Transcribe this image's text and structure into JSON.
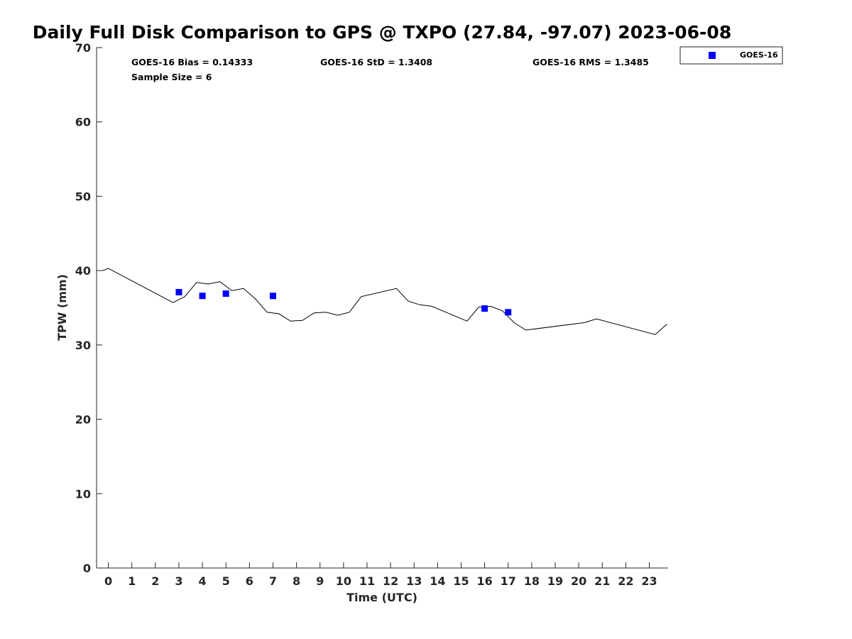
{
  "chart_data": {
    "type": "scatter",
    "title": "Daily Full Disk Comparison to GPS @ TXPO (27.84, -97.07) 2023-06-08",
    "xlabel": "Time (UTC)",
    "ylabel": "TPW (mm)",
    "xlim": [
      -0.5,
      23.8
    ],
    "ylim": [
      0,
      70
    ],
    "x_ticks": [
      0,
      1,
      2,
      3,
      4,
      5,
      6,
      7,
      8,
      9,
      10,
      11,
      12,
      13,
      14,
      15,
      16,
      17,
      18,
      19,
      20,
      21,
      22,
      23
    ],
    "y_ticks": [
      0,
      10,
      20,
      30,
      40,
      50,
      60,
      70
    ],
    "grid": false,
    "legend_placement": "outside-top-right",
    "series": [
      {
        "name": "GOES-16",
        "type": "scatter",
        "marker": "square",
        "color": "#0000ff",
        "x": [
          3,
          4,
          5,
          7,
          16,
          17
        ],
        "y": [
          37.1,
          36.6,
          36.9,
          36.6,
          34.9,
          34.4
        ]
      },
      {
        "type": "line",
        "color": "#000000",
        "x": [
          -0.25,
          0.0,
          2.75,
          3.25,
          3.75,
          4.25,
          4.75,
          5.25,
          5.75,
          6.25,
          6.75,
          7.25,
          7.75,
          8.25,
          8.75,
          9.25,
          9.75,
          10.25,
          10.75,
          12.25,
          12.75,
          13.25,
          13.75,
          15.25,
          15.75,
          16.25,
          16.75,
          17.25,
          17.75,
          20.25,
          20.75,
          23.25,
          23.75
        ],
        "y": [
          40.0,
          40.3,
          35.7,
          36.5,
          38.4,
          38.2,
          38.5,
          37.3,
          37.6,
          36.2,
          34.4,
          34.2,
          33.2,
          33.3,
          34.3,
          34.4,
          34.0,
          34.4,
          36.5,
          37.6,
          35.9,
          35.4,
          35.2,
          33.2,
          35.1,
          35.2,
          34.6,
          33.0,
          32.0,
          33.0,
          33.5,
          31.4,
          32.8
        ]
      }
    ],
    "annotations": {
      "bias": "GOES-16 Bias = 0.14333",
      "std": "GOES-16 StD = 1.3408",
      "rms": "GOES-16 RMS = 1.3485",
      "sample_size": "Sample Size = 6"
    },
    "legend_entries": [
      "GOES-16"
    ]
  }
}
